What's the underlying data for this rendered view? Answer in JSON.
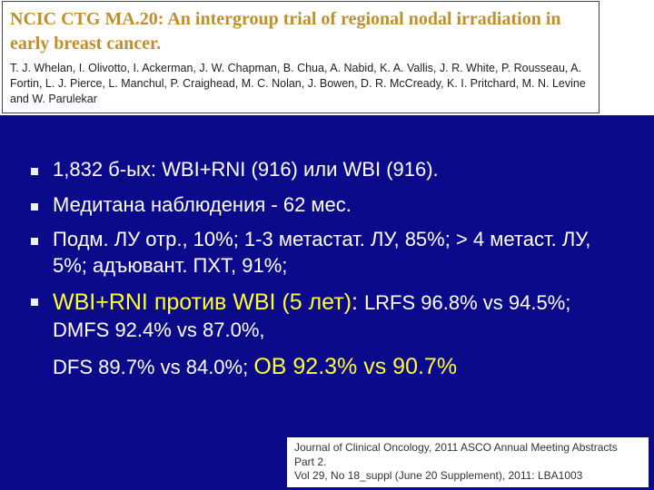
{
  "header": {
    "title": "NCIC CTG MA.20: An intergroup trial of regional nodal irradiation in early breast cancer.",
    "authors": "T. J. Whelan, I. Olivotto, I. Ackerman, J. W. Chapman, B. Chua, A. Nabid, K. A. Vallis, J. R. White, P. Rousseau, A. Fortin, L. J. Pierce, L. Manchul, P. Craighead, M. C. Nolan, J. Bowen, D. R. McCready, K. I. Pritchard, M. N. Levine and W. Parulekar"
  },
  "colors": {
    "slide_bg": "#0a0a8a",
    "bullet_text": "#ffffff",
    "highlight": "#ffff33",
    "header_title": "#c18e2d"
  },
  "bullets": {
    "b1": "1,832 б-ых: WBI+RNI (916) или WBI (916).",
    "b2": "Медитана наблюдения - 62 мес.",
    "b3": "Подм. ЛУ отр., 10%; 1-3 метастат. ЛУ, 85%; > 4 метаст. ЛУ, 5%; адъювант. ПХТ, 91%;",
    "b4": {
      "lead": " WBI+RNI против WBI (5 лет)",
      "colon": ": ",
      "lrfs_dmfs": "LRFS 96.8% vs 94.5%; DMFS 92.4% vs 87.0%,",
      "dfs": " DFS 89.7% vs 84.0%; ",
      "ov": "ОВ 92.3% vs 90.7%"
    }
  },
  "citation": {
    "line1": "Journal of Clinical Oncology, 2011 ASCO Annual Meeting Abstracts Part 2.",
    "line2": "Vol 29, No 18_suppl (June 20 Supplement), 2011: LBA1003"
  }
}
